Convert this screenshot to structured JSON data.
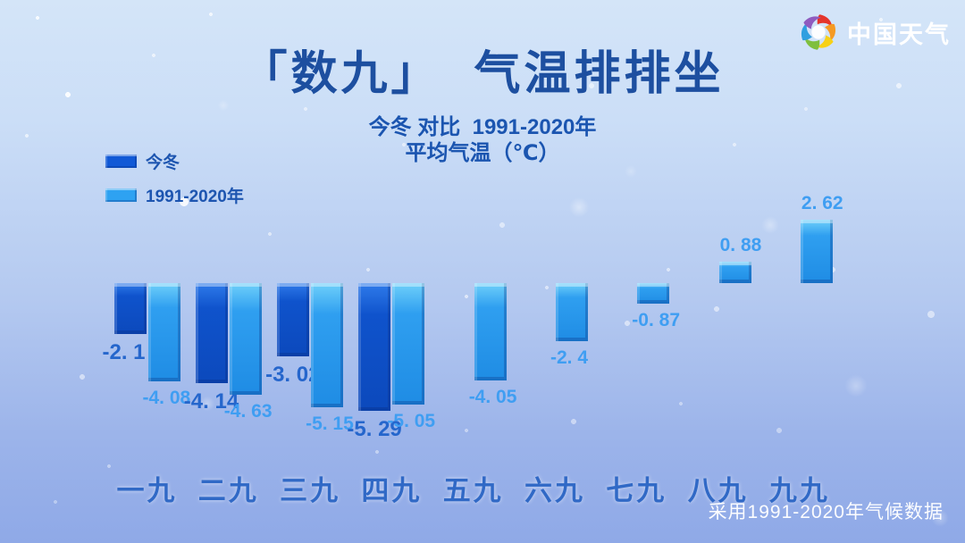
{
  "brand": {
    "name": "中国天气",
    "logo_colors": [
      "#e5352b",
      "#f59a23",
      "#f7d117",
      "#7fbf3f",
      "#2f9fe0",
      "#8f5bbf"
    ]
  },
  "title": "「数九」  气温排排坐",
  "subtitle_line1": "今冬 对比  1991-2020年",
  "subtitle_line2": "平均气温（℃）",
  "source_note": "采用1991-2020年气候数据",
  "legend": {
    "items": [
      {
        "label": "今冬",
        "color": "#1159d6"
      },
      {
        "label": "1991-2020年",
        "color": "#2ea2f2"
      }
    ]
  },
  "colors": {
    "background_top": "#d4e5f8",
    "background_bottom": "#8fa9e7",
    "title_text": "#1d4fa0",
    "subtitle_text": "#1b55b0",
    "axis_label_text": "#3069c6",
    "this_winter_bar": "#1159d6",
    "climate_bar": "#2ea2f2",
    "this_winter_value_label": "#2566cc",
    "climate_value_label": "#3f9ef2",
    "source_text": "#ffffff"
  },
  "chart_data": {
    "type": "bar",
    "title": "「数九」 气温排排坐",
    "subtitle": "今冬 对比 1991-2020年 平均气温（℃）",
    "categories": [
      "一九",
      "二九",
      "三九",
      "四九",
      "五九",
      "六九",
      "七九",
      "八九",
      "九九"
    ],
    "series": [
      {
        "key": "this-winter",
        "name": "今冬",
        "color": "#1159d6",
        "values": [
          -2.1,
          -4.14,
          -3.02,
          -5.29,
          null,
          null,
          null,
          null,
          null
        ],
        "labels": [
          "-2. 1",
          "-4. 14",
          "-3. 02",
          "-5. 29",
          null,
          null,
          null,
          null,
          null
        ]
      },
      {
        "key": "climate",
        "name": "1991-2020年",
        "color": "#2ea2f2",
        "values": [
          -4.08,
          -4.63,
          -5.15,
          -5.05,
          -4.05,
          -2.4,
          -0.87,
          0.88,
          2.62
        ],
        "labels": [
          "-4. 08",
          "-4. 63",
          "-5. 15",
          "-5. 05",
          "-4. 05",
          "-2. 4",
          "-0. 87",
          "0. 88",
          "2. 62"
        ]
      }
    ],
    "ylabel": "平均气温（℃）",
    "ylim": [
      -5.5,
      3
    ],
    "baseline": 0,
    "grid": false,
    "value_labels": true,
    "legend_position": "top-left"
  }
}
